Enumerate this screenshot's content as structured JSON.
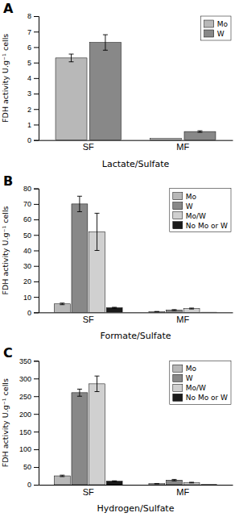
{
  "chart_data": [
    {
      "type": "bar",
      "xlabel": "Lactate/Sulfate",
      "ylabel": "FDH activity U.g⁻¹ cells",
      "annotations": [
        "A"
      ],
      "categories": [
        "SF",
        "MF"
      ],
      "series": [
        {
          "name": "Mo",
          "color": "#b8b8b8",
          "values": [
            5.3,
            0.1
          ],
          "errors": [
            0.25,
            0.0
          ]
        },
        {
          "name": "W",
          "color": "#888888",
          "values": [
            6.3,
            0.55
          ],
          "errors": [
            0.5,
            0.05
          ]
        }
      ],
      "ylim": [
        0,
        8
      ],
      "yticks": [
        0,
        1,
        2,
        3,
        4,
        5,
        6,
        7,
        8
      ],
      "legend": "upper right",
      "grid": false
    },
    {
      "type": "bar",
      "xlabel": "Formate/Sulfate",
      "ylabel": "FDH activity U.g⁻¹ cells",
      "annotations": [
        "B"
      ],
      "categories": [
        "SF",
        "MF"
      ],
      "series": [
        {
          "name": "Mo",
          "color": "#b8b8b8",
          "values": [
            5.5,
            0.5
          ],
          "errors": [
            0.5,
            0.1
          ]
        },
        {
          "name": "W",
          "color": "#888888",
          "values": [
            70.0,
            1.5
          ],
          "errors": [
            5.0,
            0.3
          ]
        },
        {
          "name": "Mo/W",
          "color": "#d0d0d0",
          "values": [
            52.0,
            2.5
          ],
          "errors": [
            12.0,
            0.3
          ]
        },
        {
          "name": "No Mo or W",
          "color": "#1a1a1a",
          "values": [
            3.0,
            0.1
          ],
          "errors": [
            0.3,
            0.0
          ]
        }
      ],
      "ylim": [
        0,
        80
      ],
      "yticks": [
        0,
        10,
        20,
        30,
        40,
        50,
        60,
        70,
        80
      ],
      "legend": "upper right",
      "grid": false
    },
    {
      "type": "bar",
      "xlabel": "Hydrogen/Sulfate",
      "ylabel": "FDH activity U.g⁻¹ cells",
      "annotations": [
        "C"
      ],
      "categories": [
        "SF",
        "MF"
      ],
      "series": [
        {
          "name": "Mo",
          "color": "#b8b8b8",
          "values": [
            25.0,
            3.0
          ],
          "errors": [
            2.0,
            0.5
          ]
        },
        {
          "name": "W",
          "color": "#888888",
          "values": [
            260.0,
            13.0
          ],
          "errors": [
            10.0,
            2.0
          ]
        },
        {
          "name": "Mo/W",
          "color": "#d0d0d0",
          "values": [
            285.0,
            6.0
          ],
          "errors": [
            22.0,
            1.0
          ]
        },
        {
          "name": "No Mo or W",
          "color": "#1a1a1a",
          "values": [
            10.0,
            0.5
          ],
          "errors": [
            1.0,
            0.0
          ]
        }
      ],
      "ylim": [
        0,
        350
      ],
      "yticks": [
        0,
        50,
        100,
        150,
        200,
        250,
        300,
        350
      ],
      "legend": "upper right",
      "grid": false
    }
  ]
}
